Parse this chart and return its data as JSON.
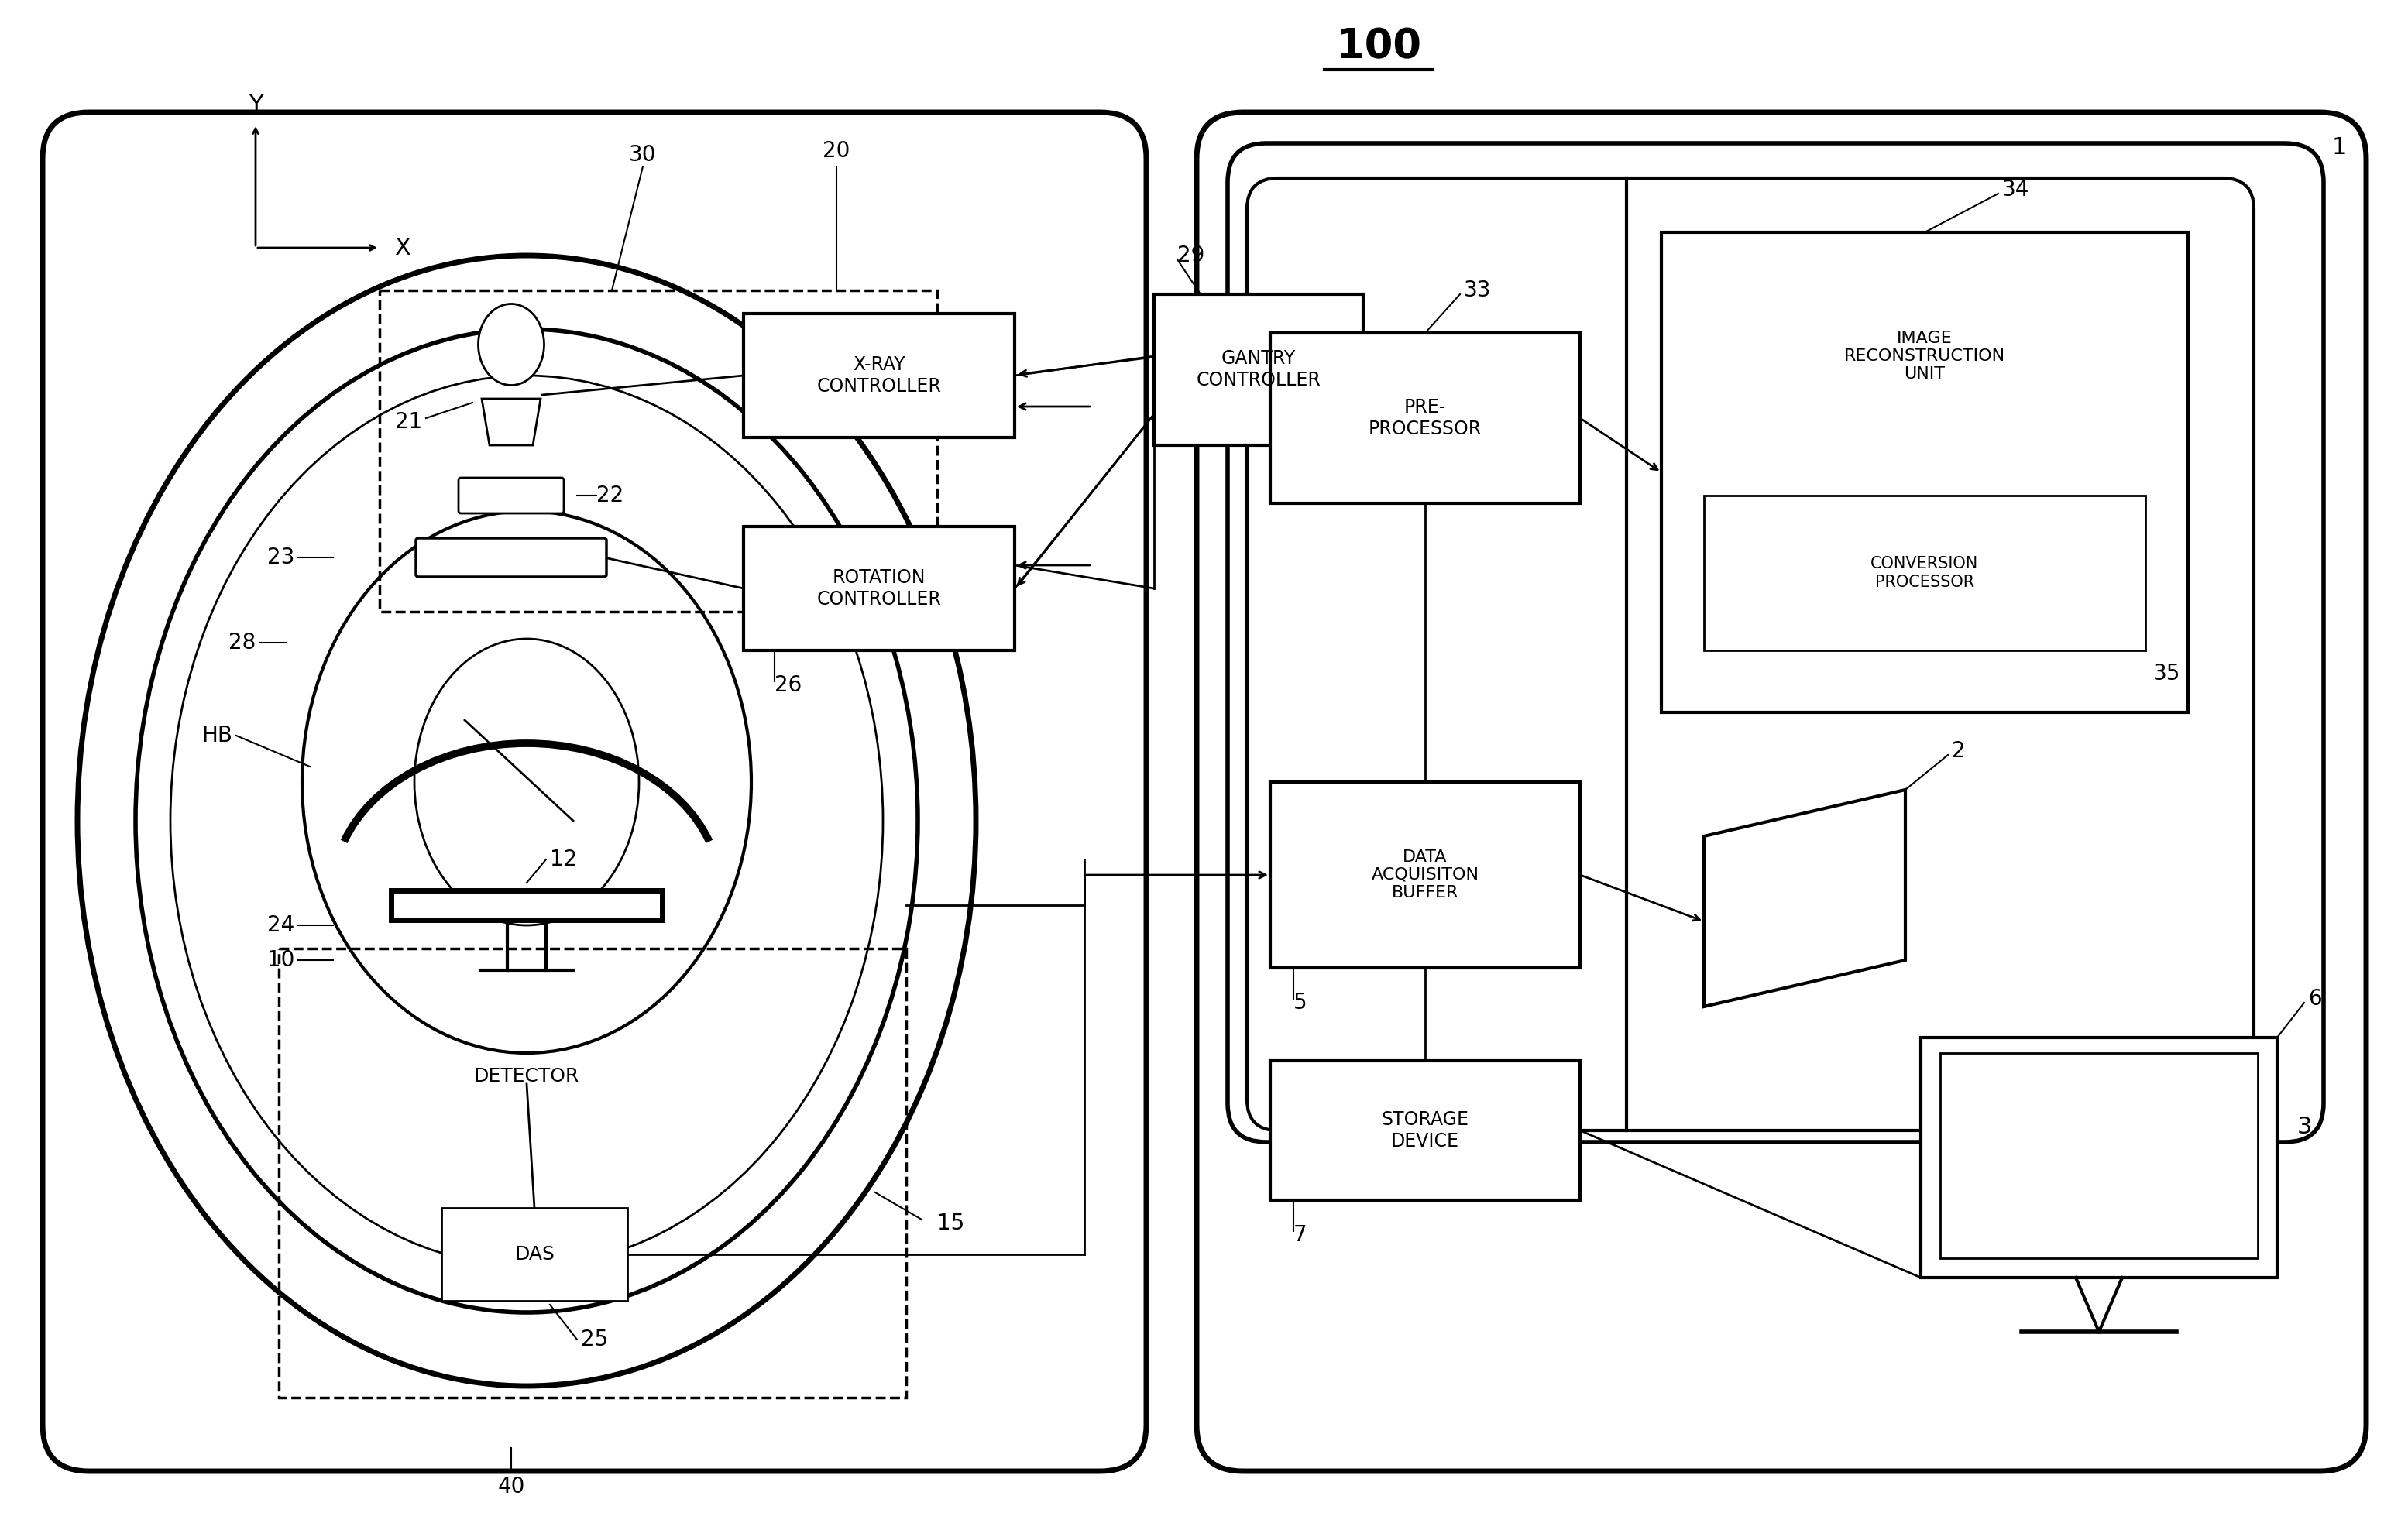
{
  "bg_color": "#ffffff",
  "line_color": "#000000",
  "fig_width": 31.09,
  "fig_height": 19.76,
  "labels": {
    "title": "100",
    "axis_y": "Y",
    "axis_x": "X",
    "ref_1": "1",
    "ref_2": "2",
    "ref_3": "3",
    "ref_5": "5",
    "ref_6": "6",
    "ref_7": "7",
    "ref_10": "10",
    "ref_12": "12",
    "ref_15": "15",
    "ref_20": "20",
    "ref_21": "21",
    "ref_22": "22",
    "ref_23": "23",
    "ref_24": "24",
    "ref_25": "25",
    "ref_26": "26",
    "ref_28": "28",
    "ref_29": "29",
    "ref_30": "30",
    "ref_33": "33",
    "ref_34": "34",
    "ref_35": "35",
    "ref_40": "40",
    "hb": "HB",
    "xray_ctrl": "X-RAY\nCONTROLLER",
    "rotation_ctrl": "ROTATION\nCONTROLLER",
    "gantry_ctrl": "GANTRY\nCONTROLLER",
    "preprocessor": "PRE-\nPROCESSOR",
    "image_recon": "IMAGE\nRECONSTRUCTION\nUNIT",
    "conv_proc": "CONVERSION\nPROCESSOR",
    "data_acq": "DATA\nACQUISITON\nBUFFER",
    "storage": "STORAGE\nDEVICE",
    "detector": "DETECTOR",
    "das": "DAS"
  }
}
